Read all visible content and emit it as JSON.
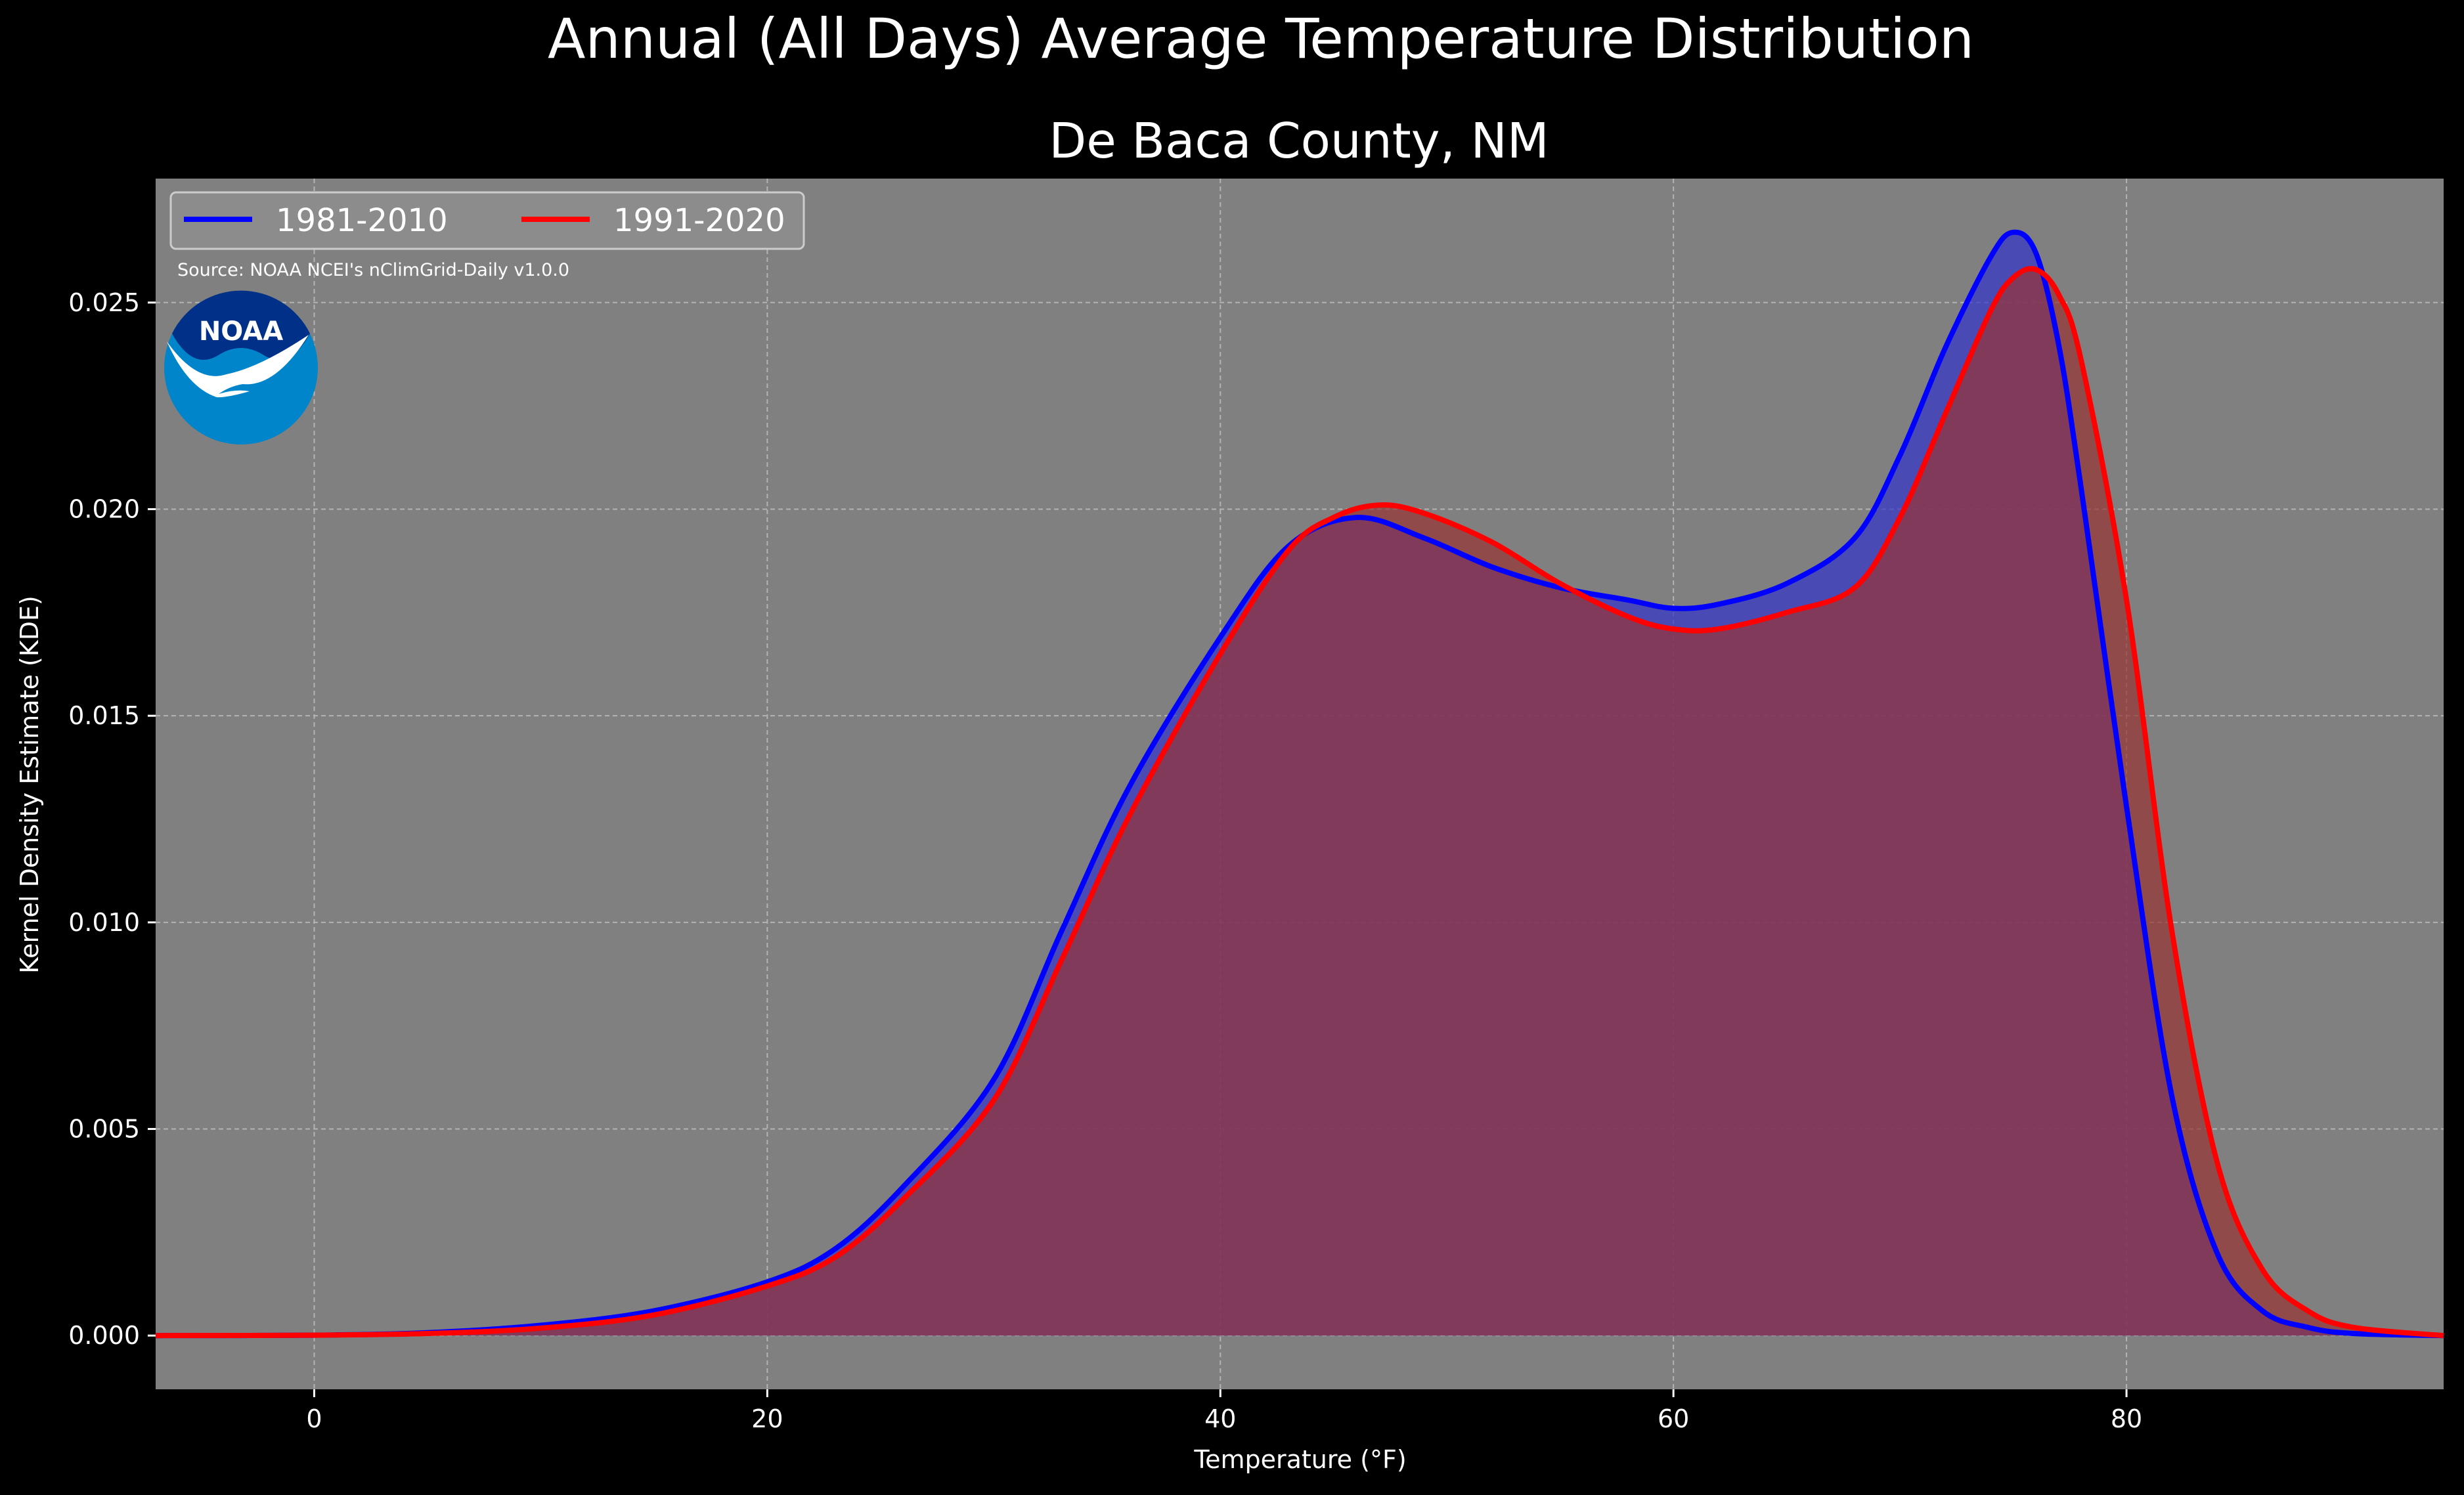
{
  "chart_data": {
    "type": "area",
    "title": "Annual (All Days) Average Temperature Distribution",
    "subtitle": "De Baca County, NM",
    "xlabel": "Temperature (°F)",
    "ylabel": "Kernel Density Estimate (KDE)",
    "xlim": [
      -7,
      94
    ],
    "ylim": [
      -0.0013,
      0.028
    ],
    "xticks": [
      0,
      20,
      40,
      60,
      80
    ],
    "xtick_labels": [
      "0",
      "20",
      "40",
      "60",
      "80"
    ],
    "yticks": [
      0.0,
      0.005,
      0.01,
      0.015,
      0.02,
      0.025
    ],
    "ytick_labels": [
      "0.000",
      "0.005",
      "0.010",
      "0.015",
      "0.020",
      "0.025"
    ],
    "grid": true,
    "legend_position": "top-left",
    "source_note": "Source: NOAA NCEI's nClimGrid-Daily v1.0.0",
    "logo_text": "NOAA",
    "colors": {
      "background": "#000000",
      "plot_background": "#808080",
      "logo_outer": "#0085CA",
      "logo_inner": "#003087"
    },
    "series": [
      {
        "name": "1981-2010",
        "color": "#0000FF",
        "fill": "#3333CC",
        "x": [
          -7,
          0,
          5,
          10,
          15,
          20,
          23,
          26,
          30,
          33,
          36,
          40,
          43,
          46,
          49,
          52,
          55,
          58,
          60,
          62,
          65,
          68,
          70,
          72,
          74,
          75,
          76,
          77,
          78,
          80,
          82,
          84,
          86,
          88,
          90,
          94
        ],
        "y": [
          0.0,
          1e-05,
          7e-05,
          0.00025,
          0.0006,
          0.0013,
          0.0021,
          0.0036,
          0.0062,
          0.0098,
          0.0133,
          0.0169,
          0.0191,
          0.0198,
          0.0193,
          0.0186,
          0.0181,
          0.0178,
          0.0176,
          0.0177,
          0.0182,
          0.0193,
          0.0213,
          0.0239,
          0.0261,
          0.0267,
          0.0262,
          0.024,
          0.0205,
          0.0128,
          0.0058,
          0.002,
          0.0006,
          0.0002,
          5e-05,
          0.0
        ]
      },
      {
        "name": "1991-2020",
        "color": "#FF0000",
        "fill": "#993333",
        "x": [
          -7,
          0,
          5,
          10,
          15,
          20,
          23,
          26,
          30,
          33,
          36,
          40,
          43,
          45,
          47,
          49,
          52,
          55,
          58,
          60,
          62,
          65,
          68,
          70,
          72,
          74,
          75,
          76,
          77,
          78,
          80,
          82,
          84,
          86,
          88,
          90,
          94
        ],
        "y": [
          0.0,
          1e-05,
          5e-05,
          0.00018,
          0.0005,
          0.0012,
          0.0019,
          0.0033,
          0.0057,
          0.0091,
          0.0126,
          0.0165,
          0.019,
          0.0198,
          0.0201,
          0.0199,
          0.0192,
          0.0182,
          0.0174,
          0.0171,
          0.0171,
          0.0175,
          0.0181,
          0.0198,
          0.0223,
          0.0248,
          0.0256,
          0.0258,
          0.0252,
          0.0236,
          0.0178,
          0.0098,
          0.0042,
          0.0016,
          0.0006,
          0.0002,
          0.0
        ]
      }
    ]
  }
}
